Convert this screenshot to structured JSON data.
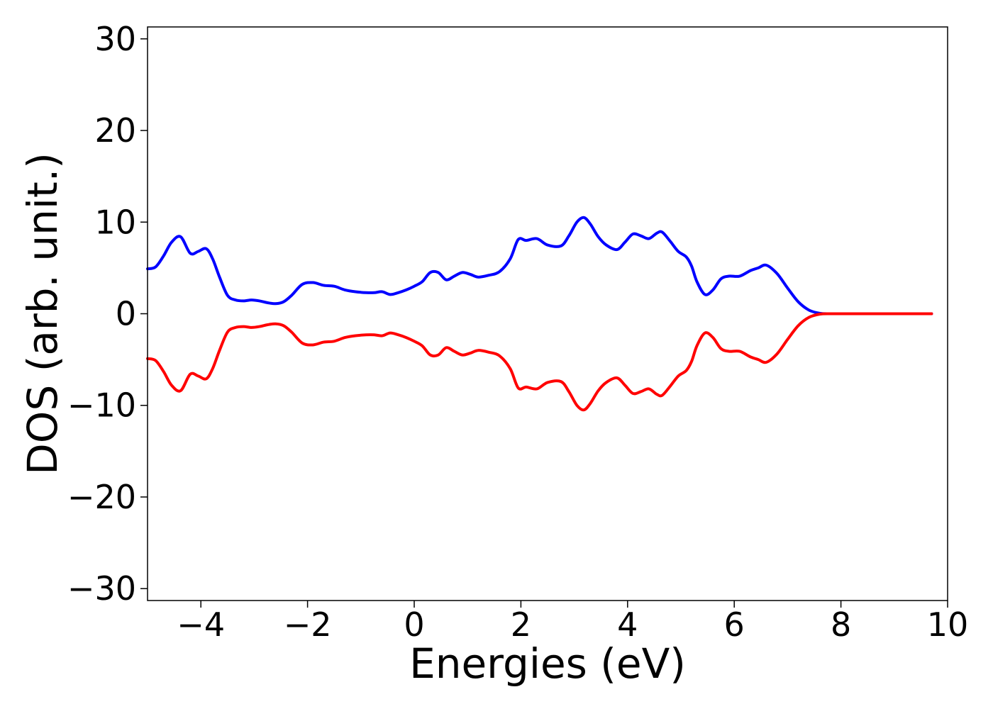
{
  "chart_data": {
    "type": "line",
    "xlabel": "Energies (eV)",
    "ylabel": "DOS (arb. unit.)",
    "xlim": [
      -5.0,
      10.0
    ],
    "ylim": [
      -31.3,
      31.3
    ],
    "xticks": [
      -4,
      -2,
      0,
      2,
      4,
      6,
      8,
      10
    ],
    "xtick_labels": [
      "−4",
      "−2",
      "0",
      "2",
      "4",
      "6",
      "8",
      "10"
    ],
    "yticks": [
      30,
      20,
      10,
      0,
      -10,
      -20,
      -30
    ],
    "ytick_labels": [
      "30",
      "20",
      "10",
      "0",
      "−10",
      "−20",
      "−30"
    ],
    "grid": false,
    "legend": "none",
    "series": [
      {
        "color": "#0000ff",
        "x": [
          -5.0,
          -4.85,
          -4.7,
          -4.55,
          -4.38,
          -4.2,
          -4.05,
          -3.9,
          -3.78,
          -3.65,
          -3.5,
          -3.35,
          -3.2,
          -3.05,
          -2.9,
          -2.75,
          -2.6,
          -2.45,
          -2.3,
          -2.1,
          -1.9,
          -1.7,
          -1.5,
          -1.3,
          -1.1,
          -0.9,
          -0.75,
          -0.6,
          -0.45,
          -0.3,
          -0.15,
          0.0,
          0.15,
          0.3,
          0.45,
          0.6,
          0.75,
          0.9,
          1.05,
          1.2,
          1.4,
          1.6,
          1.8,
          1.95,
          2.1,
          2.3,
          2.5,
          2.75,
          2.9,
          3.05,
          3.18,
          3.3,
          3.45,
          3.6,
          3.8,
          3.95,
          4.1,
          4.25,
          4.4,
          4.55,
          4.65,
          4.8,
          4.95,
          5.1,
          5.2,
          5.3,
          5.45,
          5.6,
          5.75,
          5.9,
          6.1,
          6.3,
          6.45,
          6.6,
          6.8,
          7.0,
          7.2,
          7.4,
          7.6,
          7.8,
          8.0,
          9.0,
          9.7
        ],
        "y": [
          4.9,
          5.1,
          6.3,
          7.8,
          8.4,
          6.6,
          6.8,
          7.1,
          6.0,
          4.0,
          2.0,
          1.5,
          1.4,
          1.5,
          1.4,
          1.2,
          1.1,
          1.3,
          2.0,
          3.2,
          3.4,
          3.1,
          3.0,
          2.6,
          2.4,
          2.3,
          2.3,
          2.4,
          2.1,
          2.3,
          2.6,
          3.0,
          3.5,
          4.5,
          4.5,
          3.7,
          4.1,
          4.5,
          4.3,
          4.0,
          4.2,
          4.6,
          6.0,
          8.1,
          8.0,
          8.2,
          7.5,
          7.4,
          8.5,
          10.0,
          10.5,
          9.8,
          8.4,
          7.5,
          7.0,
          7.8,
          8.7,
          8.5,
          8.2,
          8.8,
          8.9,
          7.9,
          6.8,
          6.2,
          5.2,
          3.5,
          2.1,
          2.6,
          3.8,
          4.1,
          4.1,
          4.7,
          5.0,
          5.3,
          4.4,
          2.8,
          1.3,
          0.4,
          0.05,
          0.0,
          0.0,
          0.0,
          0.0
        ]
      },
      {
        "color": "#ff0000",
        "x": [
          -5.0,
          -4.85,
          -4.7,
          -4.55,
          -4.38,
          -4.2,
          -4.05,
          -3.9,
          -3.78,
          -3.65,
          -3.5,
          -3.35,
          -3.2,
          -3.05,
          -2.9,
          -2.75,
          -2.6,
          -2.45,
          -2.3,
          -2.1,
          -1.9,
          -1.7,
          -1.5,
          -1.3,
          -1.1,
          -0.9,
          -0.75,
          -0.6,
          -0.45,
          -0.3,
          -0.15,
          0.0,
          0.15,
          0.3,
          0.45,
          0.6,
          0.75,
          0.9,
          1.05,
          1.2,
          1.4,
          1.6,
          1.8,
          1.95,
          2.1,
          2.3,
          2.5,
          2.75,
          2.9,
          3.05,
          3.18,
          3.3,
          3.45,
          3.6,
          3.8,
          3.95,
          4.1,
          4.25,
          4.4,
          4.55,
          4.65,
          4.8,
          4.95,
          5.1,
          5.2,
          5.3,
          5.45,
          5.6,
          5.75,
          5.9,
          6.1,
          6.3,
          6.45,
          6.6,
          6.8,
          7.0,
          7.2,
          7.4,
          7.6,
          7.8,
          8.0,
          9.0,
          9.7
        ],
        "y": [
          -4.9,
          -5.1,
          -6.3,
          -7.8,
          -8.4,
          -6.6,
          -6.8,
          -7.1,
          -6.0,
          -4.0,
          -2.0,
          -1.5,
          -1.4,
          -1.5,
          -1.4,
          -1.2,
          -1.1,
          -1.3,
          -2.0,
          -3.2,
          -3.4,
          -3.1,
          -3.0,
          -2.6,
          -2.4,
          -2.3,
          -2.3,
          -2.4,
          -2.1,
          -2.3,
          -2.6,
          -3.0,
          -3.5,
          -4.5,
          -4.5,
          -3.7,
          -4.1,
          -4.5,
          -4.3,
          -4.0,
          -4.2,
          -4.6,
          -6.0,
          -8.1,
          -8.0,
          -8.2,
          -7.5,
          -7.4,
          -8.5,
          -10.0,
          -10.5,
          -9.8,
          -8.4,
          -7.5,
          -7.0,
          -7.8,
          -8.7,
          -8.5,
          -8.2,
          -8.8,
          -8.9,
          -7.9,
          -6.8,
          -6.2,
          -5.2,
          -3.5,
          -2.1,
          -2.6,
          -3.8,
          -4.1,
          -4.1,
          -4.7,
          -5.0,
          -5.3,
          -4.4,
          -2.8,
          -1.3,
          -0.4,
          -0.05,
          0.0,
          0.0,
          0.0,
          0.0
        ]
      }
    ]
  }
}
